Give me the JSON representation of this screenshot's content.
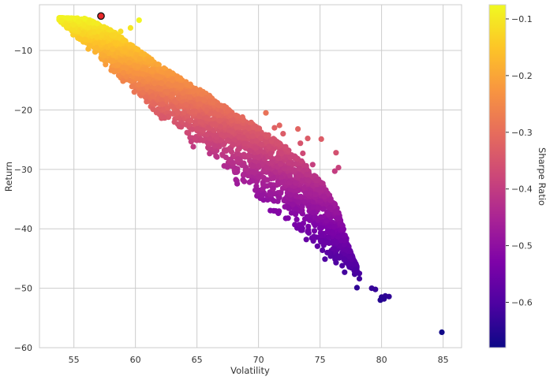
{
  "chart_data": {
    "type": "scatter",
    "title": "",
    "xlabel": "Volatility",
    "ylabel": "Return",
    "xlim": [
      52.2,
      86.5
    ],
    "ylim": [
      -60,
      -2.3
    ],
    "xticks": [
      55,
      60,
      65,
      70,
      75,
      80,
      85
    ],
    "yticks": [
      -10,
      -20,
      -30,
      -40,
      -50,
      -60
    ],
    "grid": true,
    "colormap": "plasma",
    "colorbar": {
      "label": "Sharpe Ratio",
      "range": [
        -0.68,
        -0.075
      ],
      "ticks": [
        -0.1,
        -0.2,
        -0.3,
        -0.4,
        -0.5,
        -0.6
      ]
    },
    "highlight_point": {
      "x": 57.2,
      "y": -4.2,
      "sharpe": -0.08,
      "color": "#e8282a",
      "edge": "#111111"
    },
    "frontier_edge": [
      [
        53.8,
        -5.0
      ],
      [
        55.0,
        -7.5
      ],
      [
        56.0,
        -9.5
      ],
      [
        57.0,
        -11.5
      ],
      [
        58.0,
        -13.5
      ],
      [
        60.0,
        -17.5
      ],
      [
        62.0,
        -21.5
      ],
      [
        64.0,
        -25.0
      ],
      [
        66.0,
        -28.5
      ],
      [
        68.0,
        -32.0
      ],
      [
        70.0,
        -35.5
      ],
      [
        72.0,
        -39.0
      ],
      [
        74.0,
        -42.5
      ],
      [
        76.0,
        -45.5
      ],
      [
        78.0,
        -48.5
      ]
    ],
    "upper_edge": [
      [
        54.0,
        -4.5
      ],
      [
        56.0,
        -4.6
      ],
      [
        58.0,
        -6.5
      ],
      [
        60.0,
        -9.5
      ],
      [
        62.0,
        -12.5
      ],
      [
        64.0,
        -15.0
      ],
      [
        66.0,
        -17.5
      ],
      [
        68.0,
        -20.5
      ],
      [
        70.0,
        -23.0
      ],
      [
        72.0,
        -26.0
      ],
      [
        74.0,
        -29.5
      ],
      [
        75.5,
        -33.0
      ],
      [
        76.5,
        -37.0
      ],
      [
        77.5,
        -44.0
      ],
      [
        78.5,
        -48.5
      ]
    ],
    "sparse_points": [
      {
        "x": 76.3,
        "y": -27.2
      },
      {
        "x": 76.5,
        "y": -29.7
      },
      {
        "x": 76.2,
        "y": -30.3
      },
      {
        "x": 74.0,
        "y": -24.8
      },
      {
        "x": 75.1,
        "y": -24.9
      },
      {
        "x": 73.4,
        "y": -25.6
      },
      {
        "x": 72.0,
        "y": -24.0
      },
      {
        "x": 71.3,
        "y": -23.0
      },
      {
        "x": 71.7,
        "y": -22.6
      },
      {
        "x": 73.2,
        "y": -23.2
      },
      {
        "x": 73.6,
        "y": -27.3
      },
      {
        "x": 74.4,
        "y": -29.2
      },
      {
        "x": 73.5,
        "y": -28.6
      },
      {
        "x": 72.2,
        "y": -26.2
      },
      {
        "x": 72.6,
        "y": -28.0
      },
      {
        "x": 71.8,
        "y": -29.1
      },
      {
        "x": 73.3,
        "y": -31.0
      },
      {
        "x": 73.0,
        "y": -32.3
      },
      {
        "x": 73.4,
        "y": -34.6
      },
      {
        "x": 72.8,
        "y": -35.9
      },
      {
        "x": 70.6,
        "y": -20.5
      },
      {
        "x": 69.4,
        "y": -22.1
      },
      {
        "x": 68.7,
        "y": -21.2
      },
      {
        "x": 69.8,
        "y": -26.4
      },
      {
        "x": 70.0,
        "y": -28.0
      },
      {
        "x": 71.2,
        "y": -31.5
      },
      {
        "x": 71.9,
        "y": -32.2
      },
      {
        "x": 71.8,
        "y": -34.0
      },
      {
        "x": 72.6,
        "y": -34.3
      },
      {
        "x": 71.4,
        "y": -37.0
      },
      {
        "x": 67.5,
        "y": -20.2
      },
      {
        "x": 68.8,
        "y": -24.7
      },
      {
        "x": 60.3,
        "y": -4.9
      },
      {
        "x": 59.6,
        "y": -6.2
      },
      {
        "x": 58.8,
        "y": -6.8
      },
      {
        "x": 73.0,
        "y": -37.5
      },
      {
        "x": 74.0,
        "y": -40.5
      },
      {
        "x": 74.5,
        "y": -41.3
      },
      {
        "x": 75.2,
        "y": -43.6
      },
      {
        "x": 75.4,
        "y": -45.1
      },
      {
        "x": 76.3,
        "y": -45.7
      },
      {
        "x": 76.8,
        "y": -46.2
      },
      {
        "x": 77.0,
        "y": -47.3
      },
      {
        "x": 78.2,
        "y": -47.5
      },
      {
        "x": 78.2,
        "y": -48.4
      },
      {
        "x": 78.0,
        "y": -49.9
      },
      {
        "x": 79.2,
        "y": -50.0
      },
      {
        "x": 79.5,
        "y": -50.2
      },
      {
        "x": 80.0,
        "y": -51.5
      },
      {
        "x": 80.3,
        "y": -51.3
      },
      {
        "x": 80.6,
        "y": -51.4
      },
      {
        "x": 79.9,
        "y": -52.0
      },
      {
        "x": 80.2,
        "y": -51.8
      },
      {
        "x": 84.9,
        "y": -57.4
      }
    ]
  }
}
